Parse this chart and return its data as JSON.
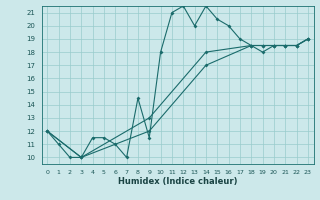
{
  "xlabel": "Humidex (Indice chaleur)",
  "bg_color": "#cce8ea",
  "grid_color": "#99cccc",
  "line_color": "#1a6b6b",
  "xlim": [
    -0.5,
    23.5
  ],
  "ylim": [
    9.5,
    21.5
  ],
  "xticks": [
    0,
    1,
    2,
    3,
    4,
    5,
    6,
    7,
    8,
    9,
    10,
    11,
    12,
    13,
    14,
    15,
    16,
    17,
    18,
    19,
    20,
    21,
    22,
    23
  ],
  "yticks": [
    10,
    11,
    12,
    13,
    14,
    15,
    16,
    17,
    18,
    19,
    20,
    21
  ],
  "line1_x": [
    0,
    1,
    2,
    3,
    4,
    5,
    6,
    7,
    8,
    9,
    10,
    11,
    12,
    13,
    14,
    15,
    16,
    17,
    18,
    19,
    20,
    21,
    22,
    23
  ],
  "line1_y": [
    12.0,
    11.0,
    10.0,
    10.0,
    11.5,
    11.5,
    11.0,
    10.0,
    14.5,
    11.5,
    18.0,
    21.0,
    21.5,
    20.0,
    21.5,
    20.5,
    20.0,
    19.0,
    18.5,
    18.0,
    18.5,
    18.5,
    18.5,
    19.0
  ],
  "line2_x": [
    0,
    3,
    9,
    14,
    18,
    19,
    20,
    21,
    22,
    23
  ],
  "line2_y": [
    12.0,
    10.0,
    13.0,
    18.0,
    18.5,
    18.5,
    18.5,
    18.5,
    18.5,
    19.0
  ],
  "line3_x": [
    0,
    3,
    9,
    14,
    18,
    19,
    20,
    21,
    22,
    23
  ],
  "line3_y": [
    12.0,
    10.0,
    12.0,
    17.0,
    18.5,
    18.5,
    18.5,
    18.5,
    18.5,
    19.0
  ]
}
